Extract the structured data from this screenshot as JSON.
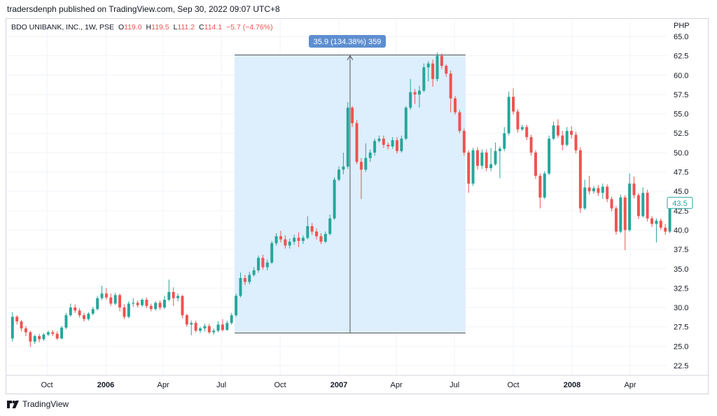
{
  "header": {
    "publisher": "tradersdenph published on TradingView.com, Sep 30, 2022 09:07 UTC+8"
  },
  "legend": {
    "symbol": "BDO UNIBANK, INC., 1W, PSE",
    "o_label": "O",
    "o_value": "119.0",
    "h_label": "H",
    "h_value": "119.5",
    "l_label": "L",
    "l_value": "111.2",
    "c_label": "C",
    "c_value": "114.1",
    "change": "−5.7 (−4.76%)"
  },
  "footer": {
    "brand": "TradingView"
  },
  "colors": {
    "up": "#26a69a",
    "down": "#ef5350",
    "range_fill": "#ddeefd",
    "badge": "#5d8ed0",
    "grid": "#f0f3fa"
  },
  "chart_data": {
    "type": "candlestick",
    "currency_label": "PHP",
    "y_ticks": [
      "65.0",
      "62.5",
      "60.0",
      "57.5",
      "55.0",
      "52.5",
      "50.0",
      "47.5",
      "45.0",
      "42.5",
      "40.0",
      "37.5",
      "35.0",
      "32.5",
      "30.0",
      "27.5",
      "25.0",
      "22.5"
    ],
    "ylim": [
      22.5,
      65.0
    ],
    "x_ticks": [
      {
        "label": "Oct",
        "date": "2005-10-01",
        "bold": false
      },
      {
        "label": "2006",
        "date": "2006-01-01",
        "bold": true
      },
      {
        "label": "Apr",
        "date": "2006-04-01",
        "bold": false
      },
      {
        "label": "Jul",
        "date": "2006-07-01",
        "bold": false
      },
      {
        "label": "Oct",
        "date": "2006-10-01",
        "bold": false
      },
      {
        "label": "2007",
        "date": "2007-01-01",
        "bold": true
      },
      {
        "label": "Apr",
        "date": "2007-04-01",
        "bold": false
      },
      {
        "label": "Jul",
        "date": "2007-07-01",
        "bold": false
      },
      {
        "label": "Oct",
        "date": "2007-10-01",
        "bold": false
      },
      {
        "label": "2008",
        "date": "2008-01-01",
        "bold": true
      },
      {
        "label": "Apr",
        "date": "2008-04-01",
        "bold": false
      }
    ],
    "first_date": "2005-08-08",
    "last_price": "43.5",
    "range_measure": {
      "label": "35.9 (134.38%) 359",
      "start_date": "2006-07-24",
      "end_date": "2007-07-16",
      "low": 26.7,
      "high": 62.6
    },
    "candles": [
      [
        26.0,
        28.8,
        29.4,
        25.6
      ],
      [
        28.8,
        28.2,
        29.0,
        27.8
      ],
      [
        28.2,
        27.3,
        28.4,
        26.9
      ],
      [
        27.3,
        26.8,
        27.6,
        26.3
      ],
      [
        26.8,
        25.6,
        27.0,
        24.9
      ],
      [
        25.6,
        26.3,
        26.5,
        25.3
      ],
      [
        26.3,
        25.9,
        26.6,
        25.5
      ],
      [
        25.9,
        26.5,
        26.7,
        25.7
      ],
      [
        26.5,
        26.8,
        27.0,
        26.3
      ],
      [
        26.8,
        26.6,
        27.1,
        26.3
      ],
      [
        26.6,
        26.0,
        26.9,
        25.8
      ],
      [
        26.0,
        27.4,
        27.6,
        25.9
      ],
      [
        27.4,
        29.0,
        29.3,
        27.2
      ],
      [
        29.0,
        30.0,
        30.5,
        28.8
      ],
      [
        30.0,
        29.6,
        30.4,
        29.3
      ],
      [
        29.6,
        29.0,
        29.9,
        28.7
      ],
      [
        29.0,
        28.5,
        29.3,
        28.2
      ],
      [
        28.5,
        29.2,
        29.4,
        28.3
      ],
      [
        29.2,
        29.8,
        30.1,
        29.0
      ],
      [
        29.8,
        31.2,
        31.5,
        29.6
      ],
      [
        31.2,
        31.8,
        32.8,
        31.0
      ],
      [
        31.8,
        31.3,
        32.5,
        31.0
      ],
      [
        31.3,
        30.5,
        31.8,
        30.2
      ],
      [
        30.5,
        31.6,
        31.9,
        30.3
      ],
      [
        31.6,
        30.0,
        31.8,
        29.5
      ],
      [
        30.0,
        28.8,
        30.4,
        28.5
      ],
      [
        28.8,
        30.5,
        30.8,
        28.6
      ],
      [
        30.5,
        30.6,
        31.2,
        30.1
      ],
      [
        30.6,
        30.3,
        30.9,
        30.0
      ],
      [
        30.3,
        31.0,
        31.2,
        30.1
      ],
      [
        31.0,
        30.2,
        31.3,
        29.9
      ],
      [
        30.2,
        29.8,
        30.5,
        29.5
      ],
      [
        29.8,
        30.6,
        30.8,
        29.6
      ],
      [
        30.6,
        30.0,
        30.9,
        29.7
      ],
      [
        30.0,
        31.0,
        31.5,
        29.8
      ],
      [
        31.0,
        32.0,
        33.6,
        30.8
      ],
      [
        32.0,
        31.2,
        32.6,
        30.2
      ],
      [
        31.2,
        31.5,
        31.8,
        30.8
      ],
      [
        31.5,
        29.0,
        31.6,
        28.6
      ],
      [
        29.0,
        27.8,
        29.2,
        27.5
      ],
      [
        27.8,
        28.0,
        28.3,
        26.4
      ],
      [
        28.0,
        27.0,
        28.3,
        26.8
      ],
      [
        27.0,
        27.3,
        27.5,
        26.7
      ],
      [
        27.3,
        27.6,
        27.9,
        26.9
      ],
      [
        27.6,
        26.8,
        27.9,
        26.6
      ],
      [
        26.8,
        27.0,
        27.3,
        26.5
      ],
      [
        27.0,
        27.8,
        28.2,
        26.8
      ],
      [
        27.8,
        27.1,
        28.5,
        26.9
      ],
      [
        27.1,
        28.0,
        28.3,
        27.0
      ],
      [
        28.0,
        29.0,
        29.3,
        27.8
      ],
      [
        29.0,
        31.5,
        31.8,
        28.8
      ],
      [
        31.5,
        33.8,
        34.5,
        31.3
      ],
      [
        33.8,
        33.3,
        34.2,
        32.9
      ],
      [
        33.3,
        34.2,
        34.6,
        33.0
      ],
      [
        34.2,
        34.8,
        35.2,
        34.0
      ],
      [
        34.8,
        36.4,
        36.7,
        34.5
      ],
      [
        36.4,
        35.2,
        36.8,
        34.9
      ],
      [
        35.2,
        35.8,
        36.2,
        34.8
      ],
      [
        35.8,
        38.3,
        38.6,
        35.6
      ],
      [
        38.3,
        39.2,
        39.6,
        38.0
      ],
      [
        39.2,
        38.8,
        39.9,
        38.4
      ],
      [
        38.8,
        38.0,
        39.3,
        37.6
      ],
      [
        38.0,
        38.5,
        38.9,
        37.6
      ],
      [
        38.5,
        39.0,
        39.4,
        38.1
      ],
      [
        39.0,
        38.6,
        39.7,
        37.8
      ],
      [
        38.6,
        39.0,
        39.3,
        38.2
      ],
      [
        39.0,
        40.5,
        41.8,
        38.8
      ],
      [
        40.5,
        39.8,
        40.9,
        39.4
      ],
      [
        39.8,
        39.2,
        40.2,
        38.8
      ],
      [
        39.2,
        38.5,
        39.6,
        38.2
      ],
      [
        38.5,
        39.5,
        39.8,
        38.3
      ],
      [
        39.5,
        41.5,
        42.0,
        39.3
      ],
      [
        41.5,
        46.5,
        46.8,
        41.3
      ],
      [
        46.5,
        47.8,
        48.2,
        46.3
      ],
      [
        47.8,
        48.2,
        50.0,
        47.2
      ],
      [
        48.2,
        55.8,
        56.5,
        47.9
      ],
      [
        55.8,
        53.8,
        56.0,
        53.3
      ],
      [
        53.8,
        48.8,
        54.2,
        48.5
      ],
      [
        48.8,
        47.8,
        49.3,
        44.0
      ],
      [
        47.8,
        49.3,
        51.2,
        47.5
      ],
      [
        49.3,
        50.0,
        50.4,
        48.8
      ],
      [
        50.0,
        51.5,
        51.8,
        49.6
      ],
      [
        51.5,
        51.8,
        52.2,
        51.3
      ],
      [
        51.8,
        51.0,
        52.2,
        50.6
      ],
      [
        51.0,
        50.8,
        51.3,
        50.4
      ],
      [
        50.8,
        51.6,
        52.0,
        50.5
      ],
      [
        51.6,
        50.2,
        52.0,
        49.9
      ],
      [
        50.2,
        51.8,
        52.2,
        50.0
      ],
      [
        51.8,
        55.8,
        56.0,
        51.6
      ],
      [
        55.8,
        57.8,
        59.5,
        55.5
      ],
      [
        57.8,
        57.5,
        58.2,
        56.3
      ],
      [
        57.5,
        58.0,
        58.6,
        55.8
      ],
      [
        58.0,
        61.0,
        61.5,
        57.8
      ],
      [
        61.0,
        61.5,
        61.8,
        59.2
      ],
      [
        61.5,
        59.5,
        62.0,
        58.5
      ],
      [
        59.5,
        62.5,
        62.9,
        59.2
      ],
      [
        62.5,
        61.2,
        62.8,
        60.8
      ],
      [
        61.2,
        60.2,
        61.4,
        59.8
      ],
      [
        60.2,
        57.0,
        60.6,
        55.2
      ],
      [
        57.0,
        55.2,
        57.3,
        54.9
      ],
      [
        55.2,
        52.8,
        55.5,
        52.5
      ],
      [
        52.8,
        50.0,
        53.1,
        49.6
      ],
      [
        50.0,
        46.0,
        50.3,
        44.8
      ],
      [
        46.0,
        50.3,
        50.6,
        45.7
      ],
      [
        50.3,
        48.3,
        50.7,
        47.8
      ],
      [
        48.3,
        50.0,
        50.4,
        47.9
      ],
      [
        50.0,
        48.0,
        50.4,
        47.6
      ],
      [
        48.0,
        48.5,
        50.6,
        47.6
      ],
      [
        48.5,
        50.2,
        51.3,
        48.3
      ],
      [
        50.2,
        50.5,
        50.8,
        46.7
      ],
      [
        50.5,
        52.5,
        53.3,
        50.2
      ],
      [
        52.5,
        57.2,
        57.9,
        52.2
      ],
      [
        57.2,
        55.3,
        58.3,
        54.9
      ],
      [
        55.3,
        53.0,
        55.6,
        52.6
      ],
      [
        53.0,
        53.3,
        53.6,
        52.8
      ],
      [
        53.3,
        52.0,
        53.6,
        51.6
      ],
      [
        52.0,
        50.0,
        52.3,
        49.6
      ],
      [
        50.0,
        47.0,
        50.3,
        46.6
      ],
      [
        47.0,
        44.2,
        47.3,
        42.8
      ],
      [
        44.2,
        47.3,
        47.6,
        44.0
      ],
      [
        47.3,
        51.8,
        52.2,
        47.1
      ],
      [
        51.8,
        53.5,
        54.0,
        51.6
      ],
      [
        53.5,
        52.2,
        54.3,
        51.9
      ],
      [
        52.2,
        51.0,
        52.8,
        50.3
      ],
      [
        51.0,
        52.8,
        53.3,
        50.8
      ],
      [
        52.8,
        52.3,
        53.4,
        51.8
      ],
      [
        52.3,
        50.3,
        52.7,
        49.9
      ],
      [
        50.3,
        42.8,
        50.7,
        42.2
      ],
      [
        42.8,
        45.5,
        46.5,
        42.6
      ],
      [
        45.5,
        45.0,
        47.0,
        44.6
      ],
      [
        45.0,
        45.4,
        45.7,
        44.7
      ],
      [
        45.4,
        44.8,
        45.8,
        44.4
      ],
      [
        44.8,
        45.6,
        46.0,
        44.0
      ],
      [
        45.6,
        44.0,
        45.9,
        43.6
      ],
      [
        44.0,
        42.8,
        44.3,
        42.4
      ],
      [
        42.8,
        39.8,
        43.1,
        39.4
      ],
      [
        39.8,
        44.2,
        44.6,
        39.6
      ],
      [
        44.2,
        40.0,
        44.5,
        37.4
      ],
      [
        40.0,
        46.0,
        47.3,
        39.8
      ],
      [
        46.0,
        44.5,
        46.9,
        44.1
      ],
      [
        44.5,
        41.8,
        44.8,
        41.4
      ],
      [
        41.8,
        44.8,
        45.5,
        41.6
      ],
      [
        44.8,
        41.5,
        45.2,
        41.1
      ],
      [
        41.5,
        40.8,
        41.8,
        40.4
      ],
      [
        40.8,
        41.2,
        41.5,
        38.4
      ],
      [
        41.2,
        40.3,
        41.5,
        40.0
      ],
      [
        40.3,
        39.8,
        40.8,
        39.4
      ],
      [
        39.8,
        43.5,
        44.1,
        39.6
      ]
    ]
  }
}
